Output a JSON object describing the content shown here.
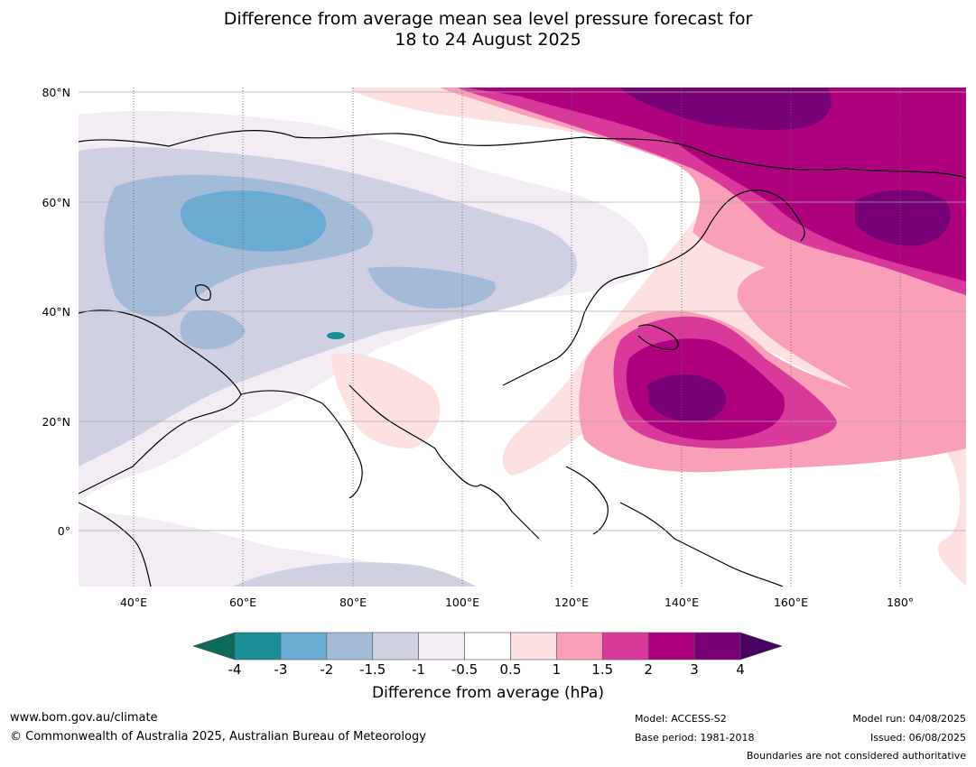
{
  "title_line1": "Difference from average mean sea level pressure forecast for",
  "title_line2": "18 to 24 August 2025",
  "map": {
    "lat_labels": [
      "80°N",
      "60°N",
      "40°N",
      "20°N",
      "0°"
    ],
    "lon_labels": [
      "40°E",
      "60°E",
      "80°E",
      "100°E",
      "120°E",
      "140°E",
      "160°E",
      "180°"
    ],
    "lon_range": [
      30,
      192
    ],
    "lat_range": [
      -10,
      81
    ]
  },
  "colorbar": {
    "ticks": [
      "-4",
      "-3",
      "-2",
      "-1.5",
      "-1",
      "-0.5",
      "0.5",
      "1",
      "1.5",
      "2",
      "3",
      "4"
    ],
    "colors": [
      "#1a8e96",
      "#6aabd2",
      "#a3bad8",
      "#cfd1e3",
      "#f3ecf5",
      "#ffffff",
      "#fde0e0",
      "#f99fb7",
      "#d9399a",
      "#ad017e",
      "#780177"
    ],
    "under_color": "#0b6a5a",
    "over_color": "#4b0063",
    "label": "Difference from average (hPa)"
  },
  "footer": {
    "url": "www.bom.gov.au/climate",
    "copyright": "© Commonwealth of Australia 2025, Australian Bureau of Meteorology",
    "model": "Model: ACCESS-S2",
    "base_period": "Base period: 1981-2018",
    "model_run": "Model run: 04/08/2025",
    "issued": "Issued: 06/08/2025",
    "disclaimer": "Boundaries are not considered authoritative"
  }
}
